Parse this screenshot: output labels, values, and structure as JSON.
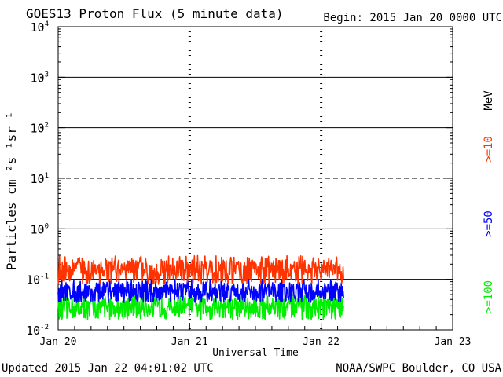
{
  "chart_data": {
    "type": "line",
    "title": "GOES13 Proton Flux (5 minute data)",
    "begin_label": "Begin: 2015 Jan 20 0000 UTC",
    "xlabel": "Universal Time",
    "ylabel": "Particles cm⁻²s⁻¹sr⁻¹",
    "yscale": "log",
    "ylim": [
      0.01,
      10000
    ],
    "xlim": [
      0,
      3
    ],
    "x_units": "days since 2015 Jan 20 0000 UTC",
    "x_ticks": [
      {
        "value": 0,
        "label": "Jan 20"
      },
      {
        "value": 1,
        "label": "Jan 21"
      },
      {
        "value": 2,
        "label": "Jan 22"
      },
      {
        "value": 3,
        "label": "Jan 23"
      }
    ],
    "y_ticks": [
      {
        "exp": "-2",
        "value": 0.01
      },
      {
        "exp": "-1",
        "value": 0.1
      },
      {
        "exp": "0",
        "value": 1
      },
      {
        "exp": "1",
        "value": 10
      },
      {
        "exp": "2",
        "value": 100
      },
      {
        "exp": "3",
        "value": 1000
      },
      {
        "exp": "4",
        "value": 10000
      }
    ],
    "y_tick_base": "10",
    "threshold_lines": [
      {
        "value": 10,
        "style": "dashed"
      }
    ],
    "solid_gridlines": [
      0.1,
      1,
      100,
      1000
    ],
    "day_marker_lines": [
      1,
      2
    ],
    "data_end_day": 2.17,
    "series": [
      {
        "name": ">=10",
        "color": "#ff3300",
        "low": 0.08,
        "mid": 0.14,
        "high": 0.3
      },
      {
        "name": ">=50",
        "color": "#0000ff",
        "low": 0.035,
        "mid": 0.055,
        "high": 0.1
      },
      {
        "name": ">=100",
        "color": "#00ee00",
        "low": 0.016,
        "mid": 0.028,
        "high": 0.05
      }
    ],
    "unit_label": "MeV"
  },
  "footer": {
    "updated": "Updated 2015 Jan 22 04:01:02 UTC",
    "source": "NOAA/SWPC Boulder, CO USA"
  }
}
